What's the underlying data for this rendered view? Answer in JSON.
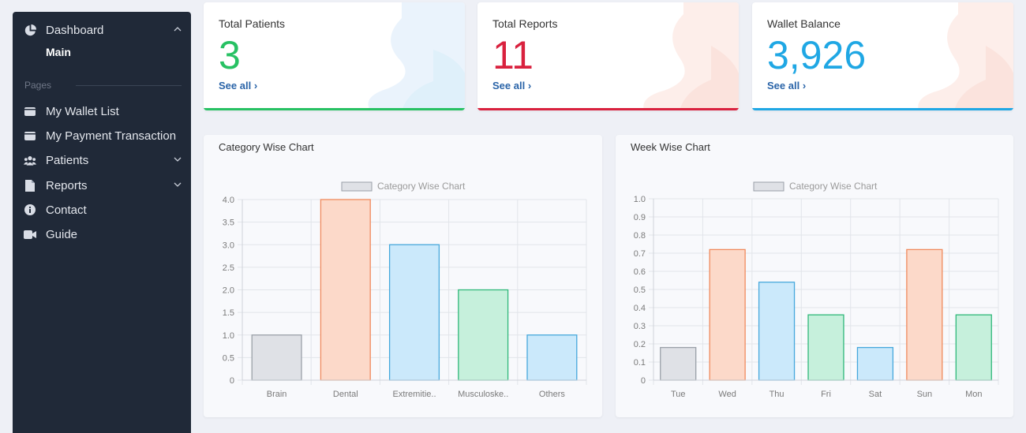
{
  "sidebar": {
    "items": [
      {
        "label": "Dashboard",
        "icon": "pie-chart-icon"
      },
      {
        "label": "My Wallet List",
        "icon": "wallet-icon"
      },
      {
        "label": "My Payment Transaction",
        "icon": "wallet-icon"
      },
      {
        "label": "Patients",
        "icon": "users-icon"
      },
      {
        "label": "Reports",
        "icon": "file-icon"
      },
      {
        "label": "Contact",
        "icon": "info-icon"
      },
      {
        "label": "Guide",
        "icon": "video-icon"
      }
    ],
    "sub_main": "Main",
    "section_pages": "Pages"
  },
  "stats": [
    {
      "title": "Total Patients",
      "value": "3",
      "link": "See all",
      "color": "#27c163"
    },
    {
      "title": "Total Reports",
      "value": "11",
      "link": "See all",
      "color": "#d9213e"
    },
    {
      "title": "Wallet Balance",
      "value": "3,926",
      "link": "See all",
      "color": "#1fa7e4"
    }
  ],
  "panels": {
    "category_title": "Category Wise Chart",
    "week_title": "Week Wise Chart"
  },
  "chart_data": [
    {
      "type": "bar",
      "legend": "Category Wise Chart",
      "categories": [
        "Brain",
        "Dental",
        "Extremitie..",
        "Musculoske..",
        "Others"
      ],
      "values": [
        1,
        4,
        3,
        2,
        1
      ],
      "ylim": [
        0,
        4
      ],
      "yticks": [
        "0",
        "0.5",
        "1.0",
        "1.5",
        "2.0",
        "2.5",
        "3.0",
        "3.5",
        "4.0"
      ],
      "colors": [
        "#9aa0a8",
        "#f08a5d",
        "#46a8dc",
        "#2fb87a",
        "#46a8dc"
      ],
      "fills": [
        "#dfe1e6",
        "#fcd9c9",
        "#cbe9fb",
        "#c6f0dc",
        "#cbe9fb"
      ],
      "grid": true,
      "legend_position": "top"
    },
    {
      "type": "bar",
      "legend": "Category Wise Chart",
      "categories": [
        "Tue",
        "Wed",
        "Thu",
        "Fri",
        "Sat",
        "Sun",
        "Mon"
      ],
      "values": [
        0.18,
        0.72,
        0.54,
        0.36,
        0.18,
        0.72,
        0.36
      ],
      "ylim": [
        0,
        1
      ],
      "yticks": [
        "0",
        "0.1",
        "0.2",
        "0.3",
        "0.4",
        "0.5",
        "0.6",
        "0.7",
        "0.8",
        "0.9",
        "1.0"
      ],
      "colors": [
        "#9aa0a8",
        "#f08a5d",
        "#46a8dc",
        "#2fb87a",
        "#46a8dc",
        "#f08a5d",
        "#2fb87a"
      ],
      "fills": [
        "#dfe1e6",
        "#fcd9c9",
        "#cbe9fb",
        "#c6f0dc",
        "#cbe9fb",
        "#fcd9c9",
        "#c6f0dc"
      ],
      "grid": true,
      "legend_position": "top"
    }
  ]
}
